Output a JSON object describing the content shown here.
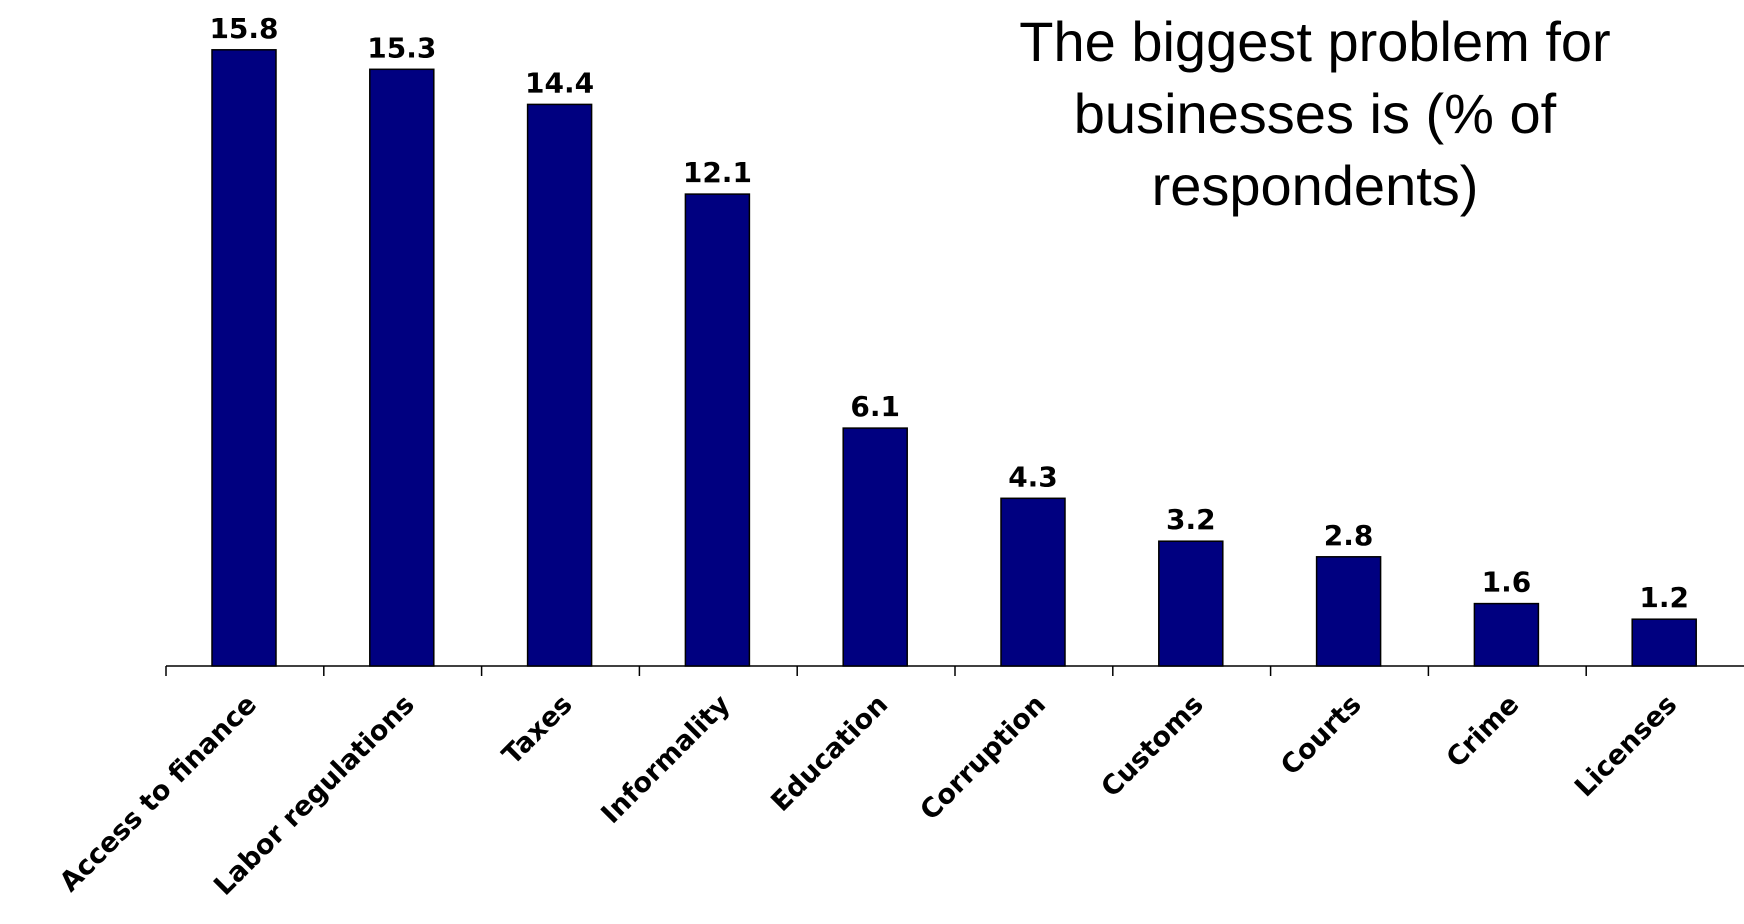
{
  "chart_data": {
    "type": "bar",
    "title": "The biggest problem for businesses is (% of respondents)",
    "xlabel": "",
    "ylabel": "",
    "categories": [
      "Access to finance",
      "Labor regulations",
      "Taxes",
      "Informality",
      "Education",
      "Corruption",
      "Customs",
      "Courts",
      "Crime",
      "Licenses"
    ],
    "values": [
      15.8,
      15.3,
      14.4,
      12.1,
      6.1,
      4.3,
      3.2,
      2.8,
      1.6,
      1.2
    ],
    "data_labels": [
      "15.8",
      "15.3",
      "14.4",
      "12.1",
      "6.1",
      "4.3",
      "3.2",
      "2.8",
      "1.6",
      "1.2"
    ],
    "ylim": [
      0,
      16
    ],
    "grid": false,
    "legend": "none",
    "colors": {
      "bar_fill": "#000080",
      "bar_stroke": "#000000",
      "axis": "#000000",
      "text": "#000000",
      "background": "#ffffff"
    }
  }
}
